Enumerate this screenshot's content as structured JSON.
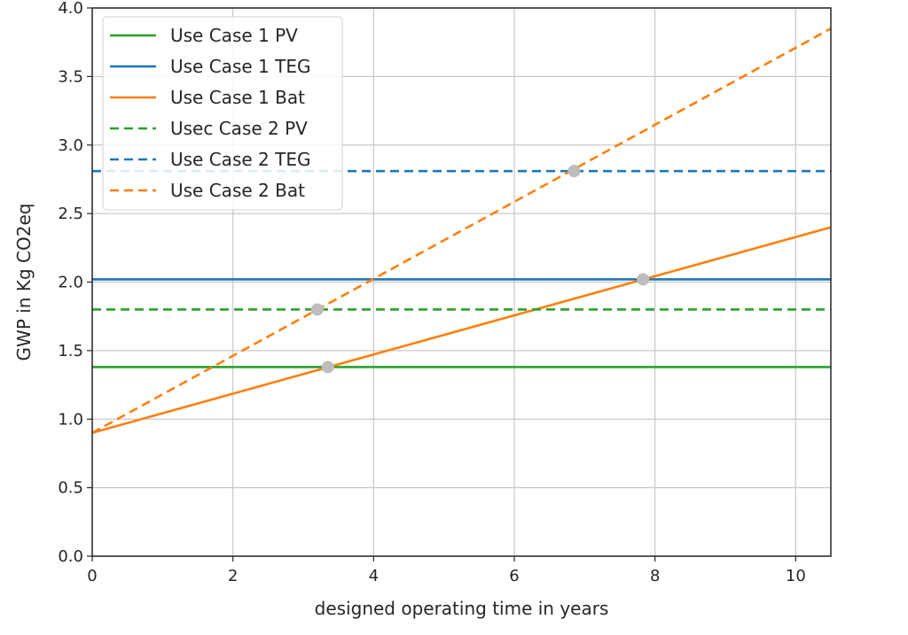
{
  "chart_data": {
    "type": "line",
    "title": "",
    "xlabel": "designed operating time in years",
    "ylabel": "GWP in Kg CO2eq",
    "xlim": [
      0,
      10.5
    ],
    "ylim": [
      0,
      4.0
    ],
    "xticks": [
      0,
      2,
      4,
      6,
      8,
      10
    ],
    "yticks": [
      0.0,
      0.5,
      1.0,
      1.5,
      2.0,
      2.5,
      3.0,
      3.5,
      4.0
    ],
    "ytick_labels": [
      "0.0",
      "0.5",
      "1.0",
      "1.5",
      "2.0",
      "2.5",
      "3.0",
      "3.5",
      "4.0"
    ],
    "grid": true,
    "legend_position": "top-left",
    "series": [
      {
        "name": "Use Case 1 PV",
        "color": "#2ca02c",
        "dash": "solid",
        "x": [
          0,
          10.5
        ],
        "y": [
          1.38,
          1.38
        ]
      },
      {
        "name": "Use Case 1 TEG",
        "color": "#1f77b4",
        "dash": "solid",
        "x": [
          0,
          10.5
        ],
        "y": [
          2.02,
          2.02
        ]
      },
      {
        "name": "Use Case 1 Bat",
        "color": "#ff7f0e",
        "dash": "solid",
        "x": [
          0,
          10.5
        ],
        "y": [
          0.9,
          2.4
        ]
      },
      {
        "name": "Usec Case 2 PV",
        "color": "#2ca02c",
        "dash": "dashed",
        "x": [
          0,
          10.5
        ],
        "y": [
          1.8,
          1.8
        ]
      },
      {
        "name": "Use Case 2 TEG",
        "color": "#1f77b4",
        "dash": "dashed",
        "x": [
          0,
          10.5
        ],
        "y": [
          2.81,
          2.81
        ]
      },
      {
        "name": "Use Case 2 Bat",
        "color": "#ff7f0e",
        "dash": "dashed",
        "x": [
          0,
          10.5
        ],
        "y": [
          0.9,
          3.85
        ]
      }
    ],
    "markers": {
      "color": "#bdbdbd",
      "points": [
        {
          "x": 3.35,
          "y": 1.38
        },
        {
          "x": 3.2,
          "y": 1.8
        },
        {
          "x": 6.85,
          "y": 2.81
        },
        {
          "x": 7.83,
          "y": 2.02
        }
      ]
    }
  }
}
